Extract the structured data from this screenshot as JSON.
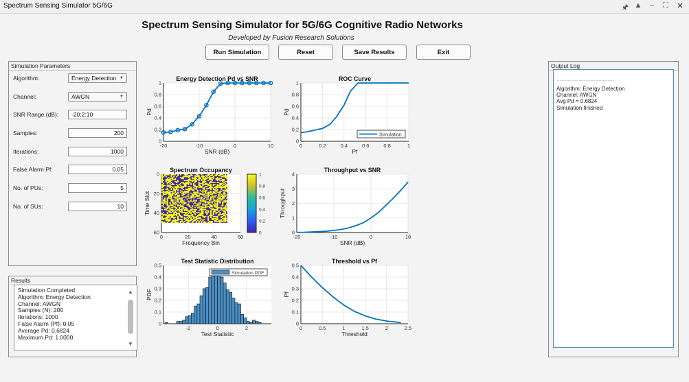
{
  "window": {
    "title": "Spectrum Sensing Simulator 5G/6G",
    "controls": [
      "pin-icon",
      "minimize-to-tray-icon",
      "minimize-icon",
      "maximize-icon",
      "close-icon"
    ]
  },
  "header": {
    "title": "Spectrum Sensing Simulator for 5G/6G Cognitive Radio Networks",
    "subtitle": "Developed by Fusion Research Solutions"
  },
  "toolbar": {
    "run_label": "Run Simulation",
    "reset_label": "Reset",
    "save_label": "Save Results",
    "exit_label": "Exit"
  },
  "params": {
    "panel_title": "Simulation Parameters",
    "algorithm": {
      "label": "Algorithm:",
      "value": "Energy Detection"
    },
    "channel": {
      "label": "Channel:",
      "value": "AWGN"
    },
    "snr_range": {
      "label": "SNR Range (dB):",
      "value": "-20:2:10"
    },
    "samples": {
      "label": "Samples:",
      "value": "200"
    },
    "iterations": {
      "label": "Iterations:",
      "value": "1000"
    },
    "false_alarm": {
      "label": "False Alarm Pf:",
      "value": "0.05"
    },
    "num_pus": {
      "label": "No. of PUs:",
      "value": "5"
    },
    "num_sus": {
      "label": "No. of SUs:",
      "value": "10"
    }
  },
  "results": {
    "panel_title": "Results",
    "lines": [
      "Simulation Completed",
      "",
      "Algorithm: Energy Detection",
      "Channel: AWGN",
      "Samples (N): 200",
      "Iterations: 1000",
      "False Alarm (Pf): 0.05",
      "",
      "Average Pd: 0.6824",
      "Maximum Pd: 1.0000"
    ]
  },
  "output_log": {
    "panel_title": "Output Log",
    "separator": "------------------------------------",
    "lines": [
      "Algorithm: Energy Detection",
      "Channel: AWGN",
      "Avg Pd = 0.6824",
      "Simulation finished"
    ]
  },
  "colors": {
    "line": "#0072BD",
    "hist_fill": "#4A90C8",
    "heat_low": "#3E26A8",
    "heat_high": "#F9FB15"
  },
  "chart_data": [
    {
      "type": "line",
      "title": "Energy Detection Pd vs SNR",
      "xlabel": "SNR (dB)",
      "ylabel": "Pd",
      "xlim": [
        -20,
        10
      ],
      "ylim": [
        0,
        1
      ],
      "xticks": [
        "-20",
        "-10",
        "0",
        "10"
      ],
      "yticks": [
        "0",
        "0.2",
        "0.4",
        "0.6",
        "0.8",
        "1"
      ],
      "markers": true,
      "grid": true,
      "x": [
        -20,
        -18,
        -16,
        -14,
        -12,
        -10,
        -8,
        -6,
        -4,
        -2,
        0,
        2,
        4,
        6,
        8,
        10
      ],
      "values": [
        0.15,
        0.16,
        0.19,
        0.21,
        0.29,
        0.43,
        0.62,
        0.85,
        0.99,
        1.0,
        1.0,
        1.0,
        1.0,
        1.0,
        1.0,
        1.0
      ]
    },
    {
      "type": "line",
      "title": "ROC Curve",
      "xlabel": "Pf",
      "ylabel": "Pd",
      "xlim": [
        0,
        1
      ],
      "ylim": [
        0,
        1
      ],
      "xticks": [
        "0",
        "0.2",
        "0.4",
        "0.6",
        "0.8",
        "1"
      ],
      "yticks": [
        "0",
        "0.2",
        "0.4",
        "0.6",
        "0.8",
        "1"
      ],
      "legend": [
        "Simulation"
      ],
      "legend_position": "southeast",
      "grid": true,
      "x": [
        0,
        0.05,
        0.1,
        0.2,
        0.27,
        0.33,
        0.4,
        0.46,
        0.53,
        0.6,
        0.8,
        1.0
      ],
      "values": [
        0.15,
        0.16,
        0.18,
        0.22,
        0.29,
        0.42,
        0.62,
        0.86,
        1.0,
        1.0,
        1.0,
        1.0
      ]
    },
    {
      "type": "heatmap",
      "title": "Spectrum Occupancy",
      "xlabel": "Frequency Bin",
      "ylabel": "Time Slot",
      "xlim": [
        0,
        60
      ],
      "ylim": [
        0,
        60
      ],
      "xticks": [
        "0",
        "20",
        "40",
        "60"
      ],
      "yticks": [
        "0",
        "20",
        "40",
        "60"
      ],
      "grid_size": [
        50,
        50
      ],
      "values_range": [
        0,
        1
      ],
      "colorbar_ticks": [
        "0",
        "0.2",
        "0.4",
        "0.6",
        "0.8",
        "1"
      ],
      "description": "Random binary occupancy matrix (0 = idle, 1 = occupied), ~50% occupied"
    },
    {
      "type": "line",
      "title": "Throughput vs SNR",
      "xlabel": "SNR (dB)",
      "ylabel": "Throughput",
      "xlim": [
        -20,
        10
      ],
      "ylim": [
        0,
        4
      ],
      "xticks": [
        "-20",
        "-10",
        "0",
        "10"
      ],
      "yticks": [
        "0",
        "1",
        "2",
        "3",
        "4"
      ],
      "grid": true,
      "x": [
        -20,
        -18,
        -16,
        -14,
        -12,
        -10,
        -8,
        -6,
        -4,
        -2,
        0,
        2,
        4,
        6,
        8,
        10
      ],
      "values": [
        0.01,
        0.02,
        0.04,
        0.06,
        0.09,
        0.14,
        0.21,
        0.32,
        0.47,
        0.68,
        1.0,
        1.37,
        1.86,
        2.35,
        2.89,
        3.46
      ]
    },
    {
      "type": "bar",
      "title": "Test Statistic Distribution",
      "xlabel": "Test Statistic",
      "ylabel": "PDF",
      "xlim": [
        -3.7,
        3.7
      ],
      "ylim": [
        0,
        0.5
      ],
      "xticks": [
        "-2",
        "0",
        "2"
      ],
      "yticks": [
        "0",
        "0.1",
        "0.2",
        "0.3",
        "0.4",
        "0.5"
      ],
      "legend": [
        "Simulation PDF"
      ],
      "legend_position": "northeast",
      "grid": true,
      "bin_width": 0.2,
      "x": [
        -3.5,
        -3.3,
        -3.1,
        -2.9,
        -2.7,
        -2.5,
        -2.3,
        -2.1,
        -1.9,
        -1.7,
        -1.5,
        -1.3,
        -1.1,
        -0.9,
        -0.7,
        -0.5,
        -0.3,
        -0.1,
        0.1,
        0.3,
        0.5,
        0.7,
        0.9,
        1.1,
        1.3,
        1.5,
        1.7,
        1.9,
        2.1,
        2.3,
        2.5,
        2.7,
        2.9,
        3.1
      ],
      "values": [
        0.01,
        0,
        0,
        0,
        0.02,
        0.02,
        0.03,
        0.06,
        0.07,
        0.09,
        0.15,
        0.17,
        0.24,
        0.3,
        0.31,
        0.4,
        0.42,
        0.42,
        0.42,
        0.4,
        0.35,
        0.29,
        0.27,
        0.22,
        0.18,
        0.17,
        0.08,
        0.05,
        0.02,
        0.01,
        0.03,
        0.02,
        0.01,
        0
      ]
    },
    {
      "type": "line",
      "title": "Threshold vs Pf",
      "xlabel": "Threshold",
      "ylabel": "Pf",
      "xlim": [
        0,
        2.5
      ],
      "ylim": [
        0,
        0.5
      ],
      "xticks": [
        "0",
        "0.5",
        "1",
        "1.5",
        "2",
        "2.5"
      ],
      "yticks": [
        "0",
        "0.1",
        "0.2",
        "0.3",
        "0.4",
        "0.5"
      ],
      "grid": true,
      "x": [
        0,
        0.25,
        0.5,
        0.75,
        1.0,
        1.25,
        1.5,
        1.75,
        2.0,
        2.33
      ],
      "values": [
        0.5,
        0.4,
        0.31,
        0.23,
        0.16,
        0.106,
        0.067,
        0.04,
        0.023,
        0.01
      ]
    }
  ]
}
